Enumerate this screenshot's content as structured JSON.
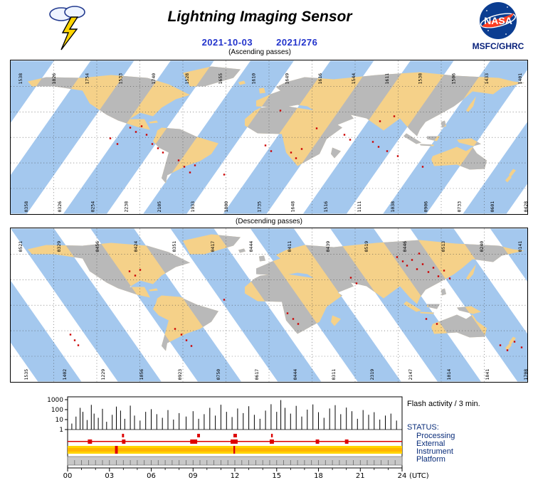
{
  "header": {
    "title": "Lightning Imaging Sensor",
    "date_iso": "2021-10-03",
    "date_doy": "2021/276",
    "agency": "MSFC/GHRC",
    "nasa": "NASA"
  },
  "maps": {
    "ascending": {
      "caption": "(Ascending passes)",
      "top_labels": [
        "1538",
        "1826",
        "1754",
        "1533",
        "1740",
        "1528",
        "1655",
        "1610",
        "1649",
        "1616",
        "1544",
        "1611",
        "1538",
        "1506",
        "1433",
        "1401"
      ],
      "bottom_labels": [
        "0358",
        "0326",
        "0254",
        "2238",
        "2105",
        "1933",
        "1800",
        "1735",
        "1648",
        "1516",
        "1111",
        "1038",
        "0906",
        "0733",
        "0601",
        "0428"
      ],
      "flash_points": [
        [
          168,
          94
        ],
        [
          176,
          100
        ],
        [
          184,
          92
        ],
        [
          191,
          104
        ],
        [
          199,
          117
        ],
        [
          207,
          123
        ],
        [
          214,
          129
        ],
        [
          244,
          149
        ],
        [
          252,
          157
        ],
        [
          259,
          147
        ],
        [
          236,
          140
        ],
        [
          358,
          119
        ],
        [
          366,
          127
        ],
        [
          394,
          129
        ],
        [
          401,
          137
        ],
        [
          409,
          124
        ],
        [
          430,
          95
        ],
        [
          469,
          104
        ],
        [
          477,
          111
        ],
        [
          509,
          114
        ],
        [
          517,
          121
        ],
        [
          529,
          127
        ],
        [
          544,
          134
        ],
        [
          579,
          149
        ],
        [
          519,
          85
        ],
        [
          539,
          78
        ],
        [
          140,
          109
        ],
        [
          150,
          117
        ],
        [
          379,
          70
        ],
        [
          300,
          160
        ]
      ]
    },
    "descending": {
      "caption": "(Descending passes)",
      "top_labels": [
        "0521",
        "0329",
        "0456",
        "0424",
        "0351",
        "0417",
        "0444",
        "0411",
        "0439",
        "0519",
        "0446",
        "0513",
        "0240",
        "0141"
      ],
      "bottom_labels": [
        "1535",
        "1402",
        "1229",
        "1056",
        "0923",
        "0750",
        "0617",
        "0444",
        "0311",
        "2319",
        "2147",
        "1014",
        "1841",
        "1708"
      ],
      "flash_points": [
        [
          167,
          60
        ],
        [
          175,
          66
        ],
        [
          182,
          58
        ],
        [
          240,
          149
        ],
        [
          247,
          157
        ],
        [
          254,
          165
        ],
        [
          231,
          141
        ],
        [
          389,
          119
        ],
        [
          397,
          127
        ],
        [
          404,
          134
        ],
        [
          478,
          69
        ],
        [
          486,
          77
        ],
        [
          543,
          40
        ],
        [
          551,
          46
        ],
        [
          557,
          52
        ],
        [
          564,
          44
        ],
        [
          571,
          57
        ],
        [
          579,
          50
        ],
        [
          587,
          61
        ],
        [
          594,
          55
        ],
        [
          601,
          67
        ],
        [
          609,
          59
        ],
        [
          574,
          35
        ],
        [
          617,
          70
        ],
        [
          84,
          149
        ],
        [
          90,
          157
        ],
        [
          95,
          164
        ],
        [
          688,
          164
        ],
        [
          698,
          171
        ],
        [
          708,
          159
        ],
        [
          718,
          167
        ],
        [
          584,
          127
        ],
        [
          599,
          134
        ],
        [
          300,
          100
        ]
      ]
    }
  },
  "chart_data": {
    "type": "bar",
    "title": "Flash activity / 3 min.",
    "xlabel": "(UTC)",
    "ylabel": "",
    "x_ticks": [
      "00",
      "03",
      "06",
      "09",
      "12",
      "15",
      "18",
      "21",
      "24"
    ],
    "y_ticks": [
      "1000",
      "100",
      "10",
      "1"
    ],
    "y_scale": "log",
    "xlim": [
      0,
      24
    ],
    "ylim": [
      1,
      1000
    ],
    "series": [
      {
        "name": "flash_count_per_3min",
        "points": [
          [
            0.3,
            4
          ],
          [
            0.6,
            20
          ],
          [
            0.9,
            150
          ],
          [
            1.1,
            60
          ],
          [
            1.4,
            9
          ],
          [
            1.7,
            300
          ],
          [
            1.9,
            40
          ],
          [
            2.2,
            15
          ],
          [
            2.5,
            120
          ],
          [
            2.8,
            6
          ],
          [
            3.2,
            30
          ],
          [
            3.5,
            200
          ],
          [
            3.8,
            80
          ],
          [
            4.1,
            12
          ],
          [
            4.5,
            250
          ],
          [
            4.8,
            25
          ],
          [
            5.2,
            8
          ],
          [
            5.6,
            60
          ],
          [
            6.0,
            110
          ],
          [
            6.4,
            35
          ],
          [
            6.8,
            15
          ],
          [
            7.2,
            90
          ],
          [
            7.6,
            10
          ],
          [
            8.0,
            45
          ],
          [
            8.5,
            20
          ],
          [
            9.0,
            70
          ],
          [
            9.4,
            12
          ],
          [
            9.8,
            35
          ],
          [
            10.2,
            150
          ],
          [
            10.6,
            25
          ],
          [
            11.0,
            310
          ],
          [
            11.4,
            60
          ],
          [
            11.8,
            18
          ],
          [
            12.2,
            130
          ],
          [
            12.6,
            45
          ],
          [
            13.0,
            220
          ],
          [
            13.4,
            30
          ],
          [
            13.8,
            12
          ],
          [
            14.2,
            80
          ],
          [
            14.6,
            350
          ],
          [
            15.0,
            60
          ],
          [
            15.3,
            900
          ],
          [
            15.6,
            150
          ],
          [
            16.0,
            40
          ],
          [
            16.4,
            240
          ],
          [
            16.8,
            20
          ],
          [
            17.2,
            100
          ],
          [
            17.6,
            330
          ],
          [
            18.0,
            55
          ],
          [
            18.4,
            15
          ],
          [
            18.8,
            130
          ],
          [
            19.2,
            280
          ],
          [
            19.6,
            35
          ],
          [
            20.0,
            160
          ],
          [
            20.4,
            70
          ],
          [
            20.8,
            12
          ],
          [
            21.2,
            90
          ],
          [
            21.6,
            30
          ],
          [
            22.0,
            55
          ],
          [
            22.4,
            10
          ],
          [
            22.8,
            25
          ],
          [
            23.2,
            40
          ],
          [
            23.6,
            8
          ]
        ]
      }
    ],
    "status_title": "STATUS:",
    "status_rows": [
      {
        "label": "Processing",
        "color": "#dd0000",
        "segments": [
          [
            3.9,
            4.05
          ],
          [
            9.3,
            9.5
          ],
          [
            11.9,
            12.15
          ],
          [
            14.6,
            14.72
          ]
        ]
      },
      {
        "label": "External",
        "color": "#dd0000",
        "baseline": [
          0,
          24
        ],
        "segments": [
          [
            1.45,
            1.75
          ],
          [
            3.9,
            4.15
          ],
          [
            8.8,
            9.3
          ],
          [
            11.7,
            12.2
          ],
          [
            14.5,
            14.8
          ],
          [
            17.8,
            18.05
          ],
          [
            19.9,
            20.15
          ]
        ]
      },
      {
        "label": "Instrument",
        "color": "#ffb400",
        "segments": [
          [
            0,
            24
          ]
        ],
        "alerts": [
          [
            3.4,
            3.6
          ],
          [
            11.9,
            12.02
          ]
        ]
      },
      {
        "label": "Platform",
        "color": "#c8c8c8",
        "segments": [
          [
            0,
            24
          ]
        ],
        "tick_interval_hours": 0.5
      }
    ]
  },
  "palette": {
    "swath_blue": "#a4c8ee",
    "land_tan": "#f5d189",
    "no_coverage_gray": "#b9b9b9",
    "flash_red": "#cc0000",
    "date_blue": "#2233cc",
    "nasa_blue": "#0b3d91",
    "nasa_red": "#fc3d21",
    "navy": "#061f7a"
  }
}
